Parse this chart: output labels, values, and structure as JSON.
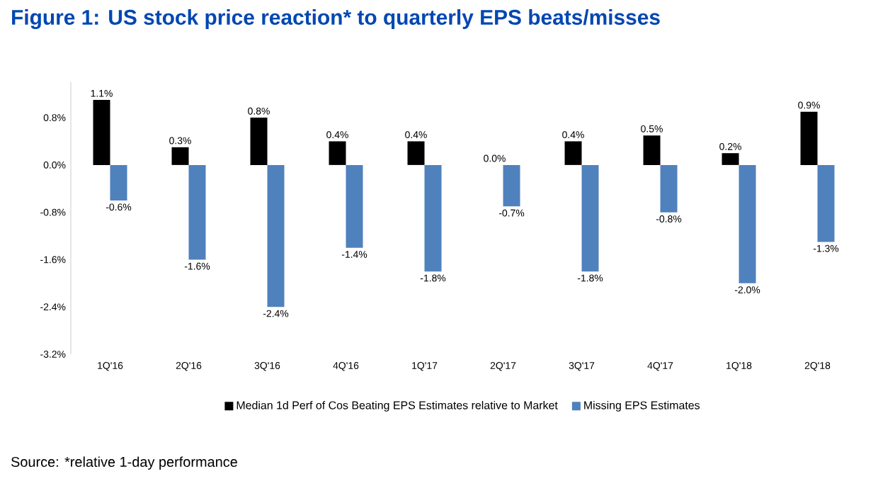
{
  "chart_data": {
    "type": "bar",
    "title": "Figure 1: US stock price reaction* to quarterly EPS beats/misses",
    "categories": [
      "1Q'16",
      "2Q'16",
      "3Q'16",
      "4Q'16",
      "1Q'17",
      "2Q'17",
      "3Q'17",
      "4Q'17",
      "1Q'18",
      "2Q'18"
    ],
    "series": [
      {
        "name": "Median 1d Perf of Cos Beating EPS Estimates relative to Market",
        "color": "#000000",
        "values": [
          1.1,
          0.3,
          0.8,
          0.4,
          0.4,
          0.0,
          0.4,
          0.5,
          0.2,
          0.9
        ],
        "value_labels": [
          "1.1%",
          "0.3%",
          "0.8%",
          "0.4%",
          "0.4%",
          "0.0%",
          "0.4%",
          "0.5%",
          "0.2%",
          "0.9%"
        ]
      },
      {
        "name": "Missing EPS Estimates",
        "color": "#4f81bd",
        "values": [
          -0.6,
          -1.6,
          -2.4,
          -1.4,
          -1.8,
          -0.7,
          -1.8,
          -0.8,
          -2.0,
          -1.3
        ],
        "value_labels": [
          "-0.6%",
          "-1.6%",
          "-2.4%",
          "-1.4%",
          "-1.8%",
          "-0.7%",
          "-1.8%",
          "-0.8%",
          "-2.0%",
          "-1.3%"
        ]
      }
    ],
    "ylim": [
      -3.2,
      1.4
    ],
    "yticks": [
      {
        "value": -3.2,
        "label": "-3.2%"
      },
      {
        "value": -2.4,
        "label": "-2.4%"
      },
      {
        "value": -1.6,
        "label": "-1.6%"
      },
      {
        "value": -0.8,
        "label": "-0.8%"
      },
      {
        "value": 0.0,
        "label": "0.0%"
      },
      {
        "value": 0.8,
        "label": "0.8%"
      }
    ],
    "legend": "bottom",
    "annotations": [
      "Source: *relative 1-day performance"
    ]
  }
}
